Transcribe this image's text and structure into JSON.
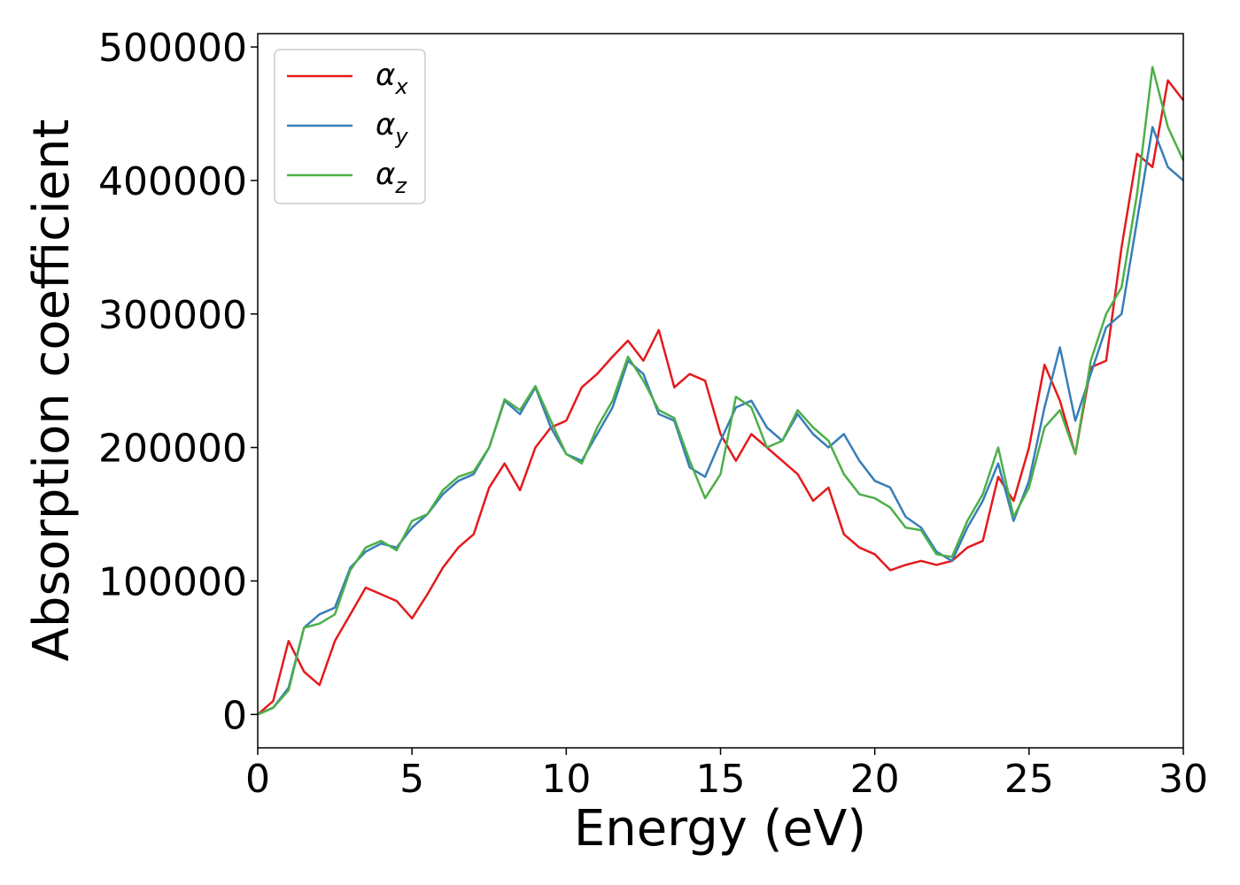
{
  "chart_data": {
    "type": "line",
    "xlabel": "Energy (eV)",
    "ylabel": "Absorption coefficient",
    "xlim": [
      0,
      30
    ],
    "ylim": [
      -25000,
      510000
    ],
    "xticks": [
      0,
      5,
      10,
      15,
      20,
      25,
      30
    ],
    "yticks": [
      0,
      100000,
      200000,
      300000,
      400000,
      500000
    ],
    "grid": false,
    "legend_position": "top-left",
    "series": [
      {
        "name": "αx",
        "label_main": "α",
        "label_sub": "x",
        "color": "#e41a1c",
        "points": [
          [
            0,
            0
          ],
          [
            0.5,
            10000
          ],
          [
            1,
            55000
          ],
          [
            1.5,
            32000
          ],
          [
            2,
            22000
          ],
          [
            2.5,
            55000
          ],
          [
            3,
            75000
          ],
          [
            3.5,
            95000
          ],
          [
            4,
            90000
          ],
          [
            4.5,
            85000
          ],
          [
            5,
            72000
          ],
          [
            5.5,
            90000
          ],
          [
            6,
            110000
          ],
          [
            6.5,
            125000
          ],
          [
            7,
            135000
          ],
          [
            7.5,
            170000
          ],
          [
            8,
            188000
          ],
          [
            8.5,
            168000
          ],
          [
            9,
            200000
          ],
          [
            9.5,
            215000
          ],
          [
            10,
            220000
          ],
          [
            10.5,
            245000
          ],
          [
            11,
            255000
          ],
          [
            11.5,
            268000
          ],
          [
            12,
            280000
          ],
          [
            12.5,
            265000
          ],
          [
            13,
            288000
          ],
          [
            13.5,
            245000
          ],
          [
            14,
            255000
          ],
          [
            14.5,
            250000
          ],
          [
            15,
            210000
          ],
          [
            15.5,
            190000
          ],
          [
            16,
            210000
          ],
          [
            16.5,
            200000
          ],
          [
            17,
            190000
          ],
          [
            17.5,
            180000
          ],
          [
            18,
            160000
          ],
          [
            18.5,
            170000
          ],
          [
            19,
            135000
          ],
          [
            19.5,
            125000
          ],
          [
            20,
            120000
          ],
          [
            20.5,
            108000
          ],
          [
            21,
            112000
          ],
          [
            21.5,
            115000
          ],
          [
            22,
            112000
          ],
          [
            22.5,
            115000
          ],
          [
            23,
            125000
          ],
          [
            23.5,
            130000
          ],
          [
            24,
            178000
          ],
          [
            24.5,
            160000
          ],
          [
            25,
            200000
          ],
          [
            25.5,
            262000
          ],
          [
            26,
            235000
          ],
          [
            26.5,
            195000
          ],
          [
            27,
            260000
          ],
          [
            27.5,
            265000
          ],
          [
            28,
            350000
          ],
          [
            28.5,
            420000
          ],
          [
            29,
            410000
          ],
          [
            29.5,
            475000
          ],
          [
            30,
            460000
          ]
        ]
      },
      {
        "name": "αy",
        "label_main": "α",
        "label_sub": "y",
        "color": "#377eb8",
        "points": [
          [
            0,
            0
          ],
          [
            0.5,
            5000
          ],
          [
            1,
            20000
          ],
          [
            1.5,
            65000
          ],
          [
            2,
            75000
          ],
          [
            2.5,
            80000
          ],
          [
            3,
            110000
          ],
          [
            3.5,
            122000
          ],
          [
            4,
            128000
          ],
          [
            4.5,
            125000
          ],
          [
            5,
            140000
          ],
          [
            5.5,
            150000
          ],
          [
            6,
            165000
          ],
          [
            6.5,
            175000
          ],
          [
            7,
            180000
          ],
          [
            7.5,
            200000
          ],
          [
            8,
            235000
          ],
          [
            8.5,
            225000
          ],
          [
            9,
            245000
          ],
          [
            9.5,
            215000
          ],
          [
            10,
            195000
          ],
          [
            10.5,
            190000
          ],
          [
            11,
            210000
          ],
          [
            11.5,
            230000
          ],
          [
            12,
            265000
          ],
          [
            12.5,
            255000
          ],
          [
            13,
            225000
          ],
          [
            13.5,
            220000
          ],
          [
            14,
            185000
          ],
          [
            14.5,
            178000
          ],
          [
            15,
            205000
          ],
          [
            15.5,
            230000
          ],
          [
            16,
            235000
          ],
          [
            16.5,
            215000
          ],
          [
            17,
            205000
          ],
          [
            17.5,
            225000
          ],
          [
            18,
            210000
          ],
          [
            18.5,
            200000
          ],
          [
            19,
            210000
          ],
          [
            19.5,
            190000
          ],
          [
            20,
            175000
          ],
          [
            20.5,
            170000
          ],
          [
            21,
            148000
          ],
          [
            21.5,
            140000
          ],
          [
            22,
            122000
          ],
          [
            22.5,
            115000
          ],
          [
            23,
            140000
          ],
          [
            23.5,
            160000
          ],
          [
            24,
            188000
          ],
          [
            24.5,
            145000
          ],
          [
            25,
            175000
          ],
          [
            25.5,
            230000
          ],
          [
            26,
            275000
          ],
          [
            26.5,
            220000
          ],
          [
            27,
            255000
          ],
          [
            27.5,
            290000
          ],
          [
            28,
            300000
          ],
          [
            28.5,
            370000
          ],
          [
            29,
            440000
          ],
          [
            29.5,
            410000
          ],
          [
            30,
            400000
          ]
        ]
      },
      {
        "name": "αz",
        "label_main": "α",
        "label_sub": "z",
        "color": "#4daf4a",
        "points": [
          [
            0,
            0
          ],
          [
            0.5,
            5000
          ],
          [
            1,
            18000
          ],
          [
            1.5,
            65000
          ],
          [
            2,
            68000
          ],
          [
            2.5,
            75000
          ],
          [
            3,
            108000
          ],
          [
            3.5,
            125000
          ],
          [
            4,
            130000
          ],
          [
            4.5,
            123000
          ],
          [
            5,
            145000
          ],
          [
            5.5,
            150000
          ],
          [
            6,
            168000
          ],
          [
            6.5,
            178000
          ],
          [
            7,
            182000
          ],
          [
            7.5,
            200000
          ],
          [
            8,
            236000
          ],
          [
            8.5,
            228000
          ],
          [
            9,
            246000
          ],
          [
            9.5,
            220000
          ],
          [
            10,
            195000
          ],
          [
            10.5,
            188000
          ],
          [
            11,
            215000
          ],
          [
            11.5,
            235000
          ],
          [
            12,
            268000
          ],
          [
            12.5,
            250000
          ],
          [
            13,
            228000
          ],
          [
            13.5,
            222000
          ],
          [
            14,
            190000
          ],
          [
            14.5,
            162000
          ],
          [
            15,
            180000
          ],
          [
            15.5,
            238000
          ],
          [
            16,
            230000
          ],
          [
            16.5,
            200000
          ],
          [
            17,
            205000
          ],
          [
            17.5,
            228000
          ],
          [
            18,
            215000
          ],
          [
            18.5,
            205000
          ],
          [
            19,
            180000
          ],
          [
            19.5,
            165000
          ],
          [
            20,
            162000
          ],
          [
            20.5,
            155000
          ],
          [
            21,
            140000
          ],
          [
            21.5,
            138000
          ],
          [
            22,
            120000
          ],
          [
            22.5,
            118000
          ],
          [
            23,
            145000
          ],
          [
            23.5,
            165000
          ],
          [
            24,
            200000
          ],
          [
            24.5,
            148000
          ],
          [
            25,
            170000
          ],
          [
            25.5,
            215000
          ],
          [
            26,
            228000
          ],
          [
            26.5,
            195000
          ],
          [
            27,
            265000
          ],
          [
            27.5,
            300000
          ],
          [
            28,
            320000
          ],
          [
            28.5,
            390000
          ],
          [
            29,
            485000
          ],
          [
            29.5,
            440000
          ],
          [
            30,
            415000
          ]
        ]
      }
    ]
  }
}
